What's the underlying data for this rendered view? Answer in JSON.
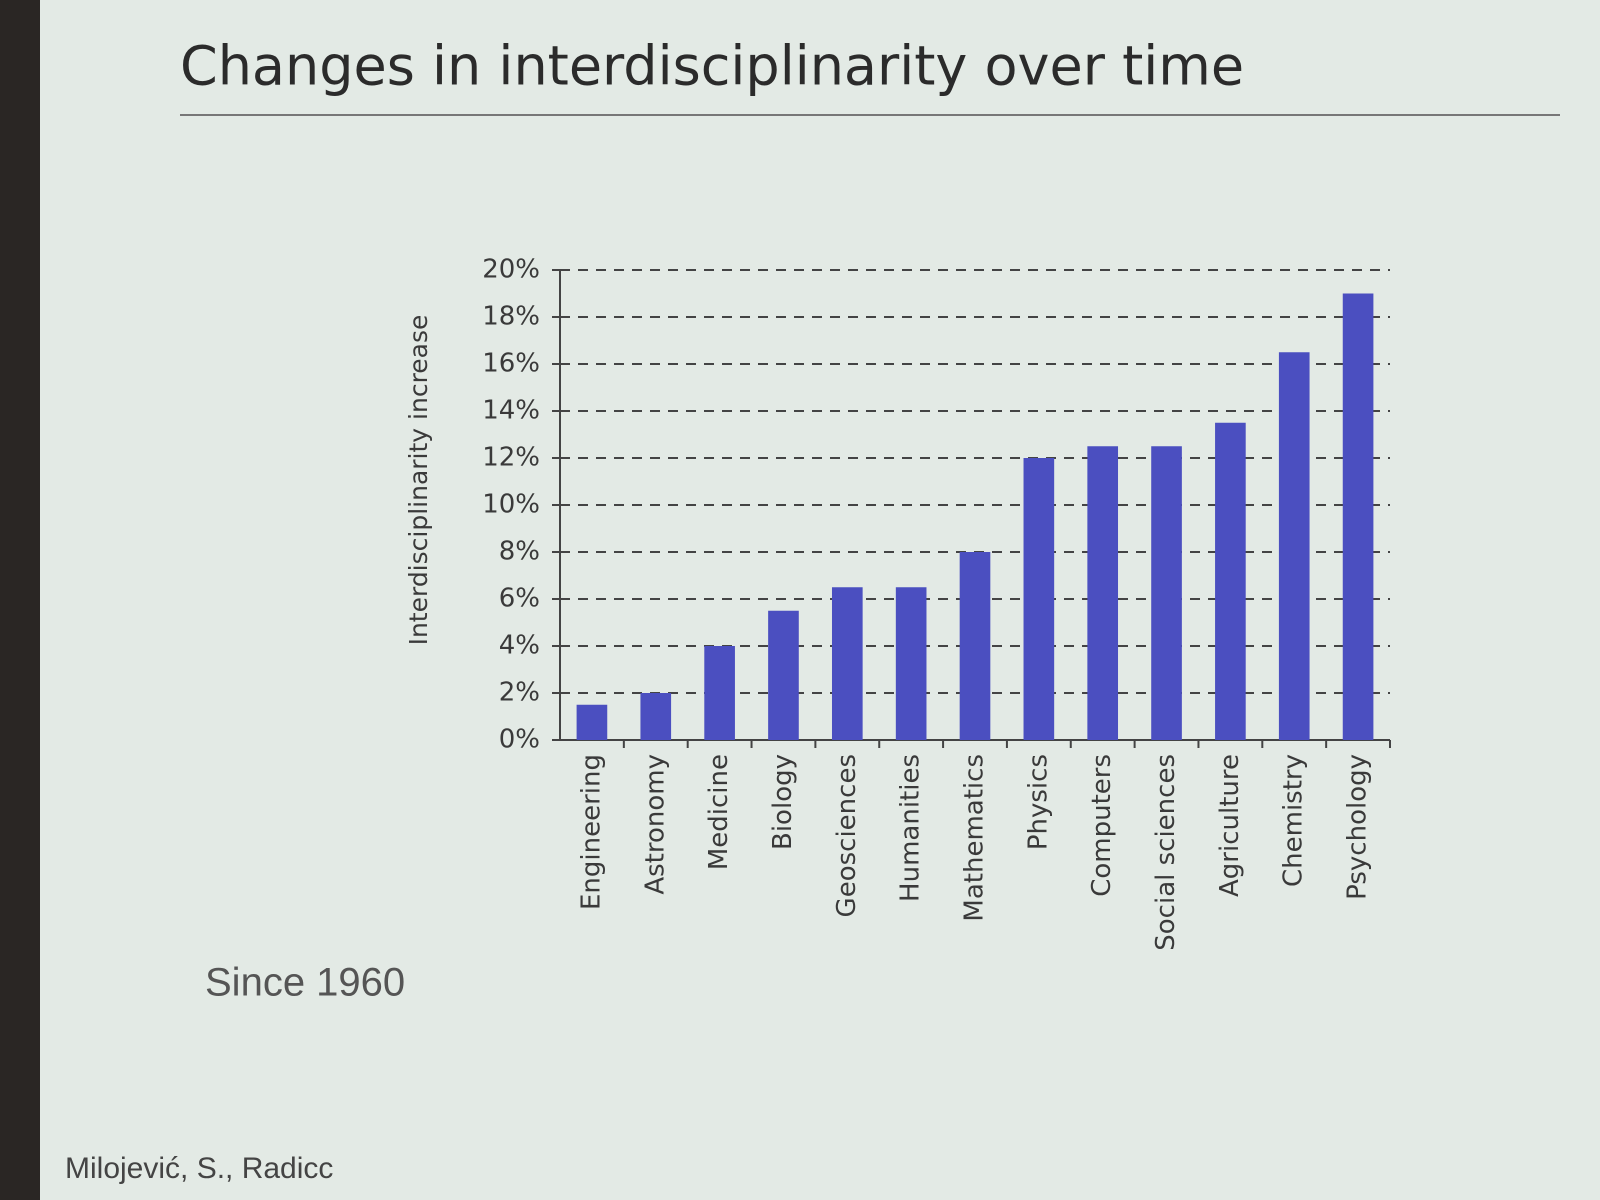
{
  "chart_data": {
    "type": "bar",
    "title": "Changes in interdisciplinarity over time",
    "y_label": "Interdisciplinarity increase",
    "annotations": [
      "Since 1960",
      "Milojević, S., Radicc"
    ],
    "categories": [
      "Engineering",
      "Astronomy",
      "Medicine",
      "Biology",
      "Geosciences",
      "Humanities",
      "Mathematics",
      "Physics",
      "Computers",
      "Social sciences",
      "Agriculture",
      "Chemistry",
      "Psychology"
    ],
    "values": [
      1.5,
      2,
      4,
      5.5,
      6.5,
      6.5,
      8,
      12,
      12.5,
      12.5,
      13.5,
      16.5,
      19
    ],
    "color": "#4b4fc0",
    "ylim": [
      0,
      20
    ],
    "yticks": [
      {
        "value": 0,
        "label": "0%"
      },
      {
        "value": 2,
        "label": "2%"
      },
      {
        "value": 4,
        "label": "4%"
      },
      {
        "value": 6,
        "label": "6%"
      },
      {
        "value": 8,
        "label": "8%"
      },
      {
        "value": 10,
        "label": "10%"
      },
      {
        "value": 12,
        "label": "12%"
      },
      {
        "value": 14,
        "label": "14%"
      },
      {
        "value": 16,
        "label": "16%"
      },
      {
        "value": 18,
        "label": "18%"
      },
      {
        "value": 20,
        "label": "20%"
      }
    ],
    "grid": true
  }
}
